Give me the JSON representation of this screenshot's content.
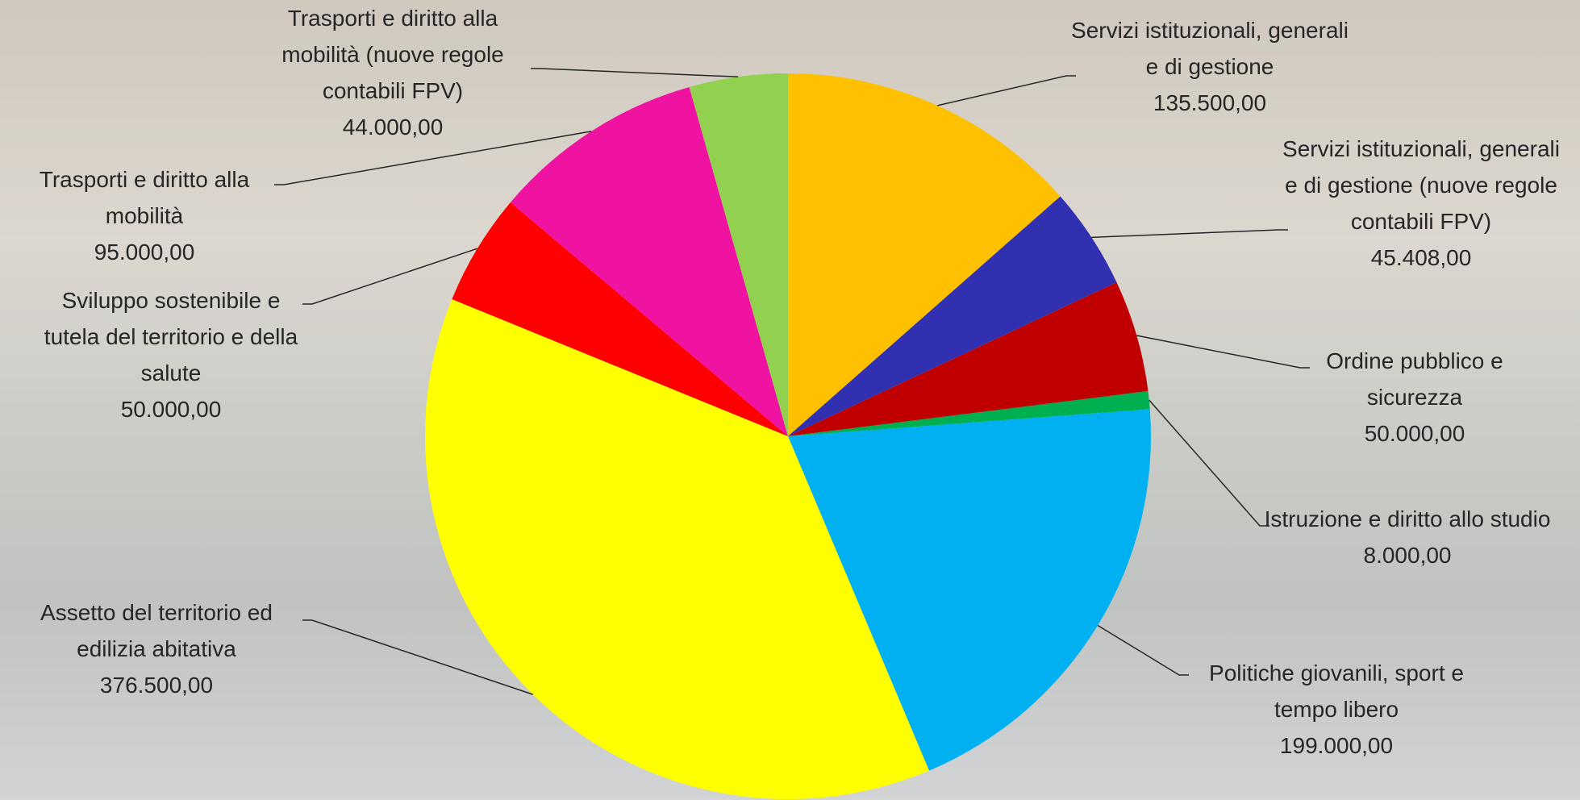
{
  "chart_data": {
    "type": "pie",
    "categories": [
      "Servizi istituzionali, generali e di gestione",
      "Servizi istituzionali, generali e di gestione (nuove regole contabili FPV)",
      "Ordine pubblico e sicurezza",
      "Istruzione e diritto allo studio",
      "Politiche giovanili, sport e tempo libero",
      "Assetto del territorio ed edilizia abitativa",
      "Sviluppo sostenibile e tutela del territorio e della salute",
      "Trasporti e diritto alla mobilità",
      "Trasporti e diritto alla mobilità (nuove regole contabili FPV)"
    ],
    "values": [
      135500,
      45408,
      50000,
      8000,
      199000,
      376500,
      50000,
      95000,
      44000
    ],
    "value_labels": [
      "135.500,00",
      "45.408,00",
      "50.000,00",
      "8.000,00",
      "199.000,00",
      "376.500,00",
      "50.000,00",
      "95.000,00",
      "44.000,00"
    ],
    "colors": [
      "#ffc000",
      "#3030b0",
      "#c00000",
      "#00b050",
      "#00b0f0",
      "#ffff00",
      "#ff0000",
      "#f012a0",
      "#92d050"
    ]
  }
}
